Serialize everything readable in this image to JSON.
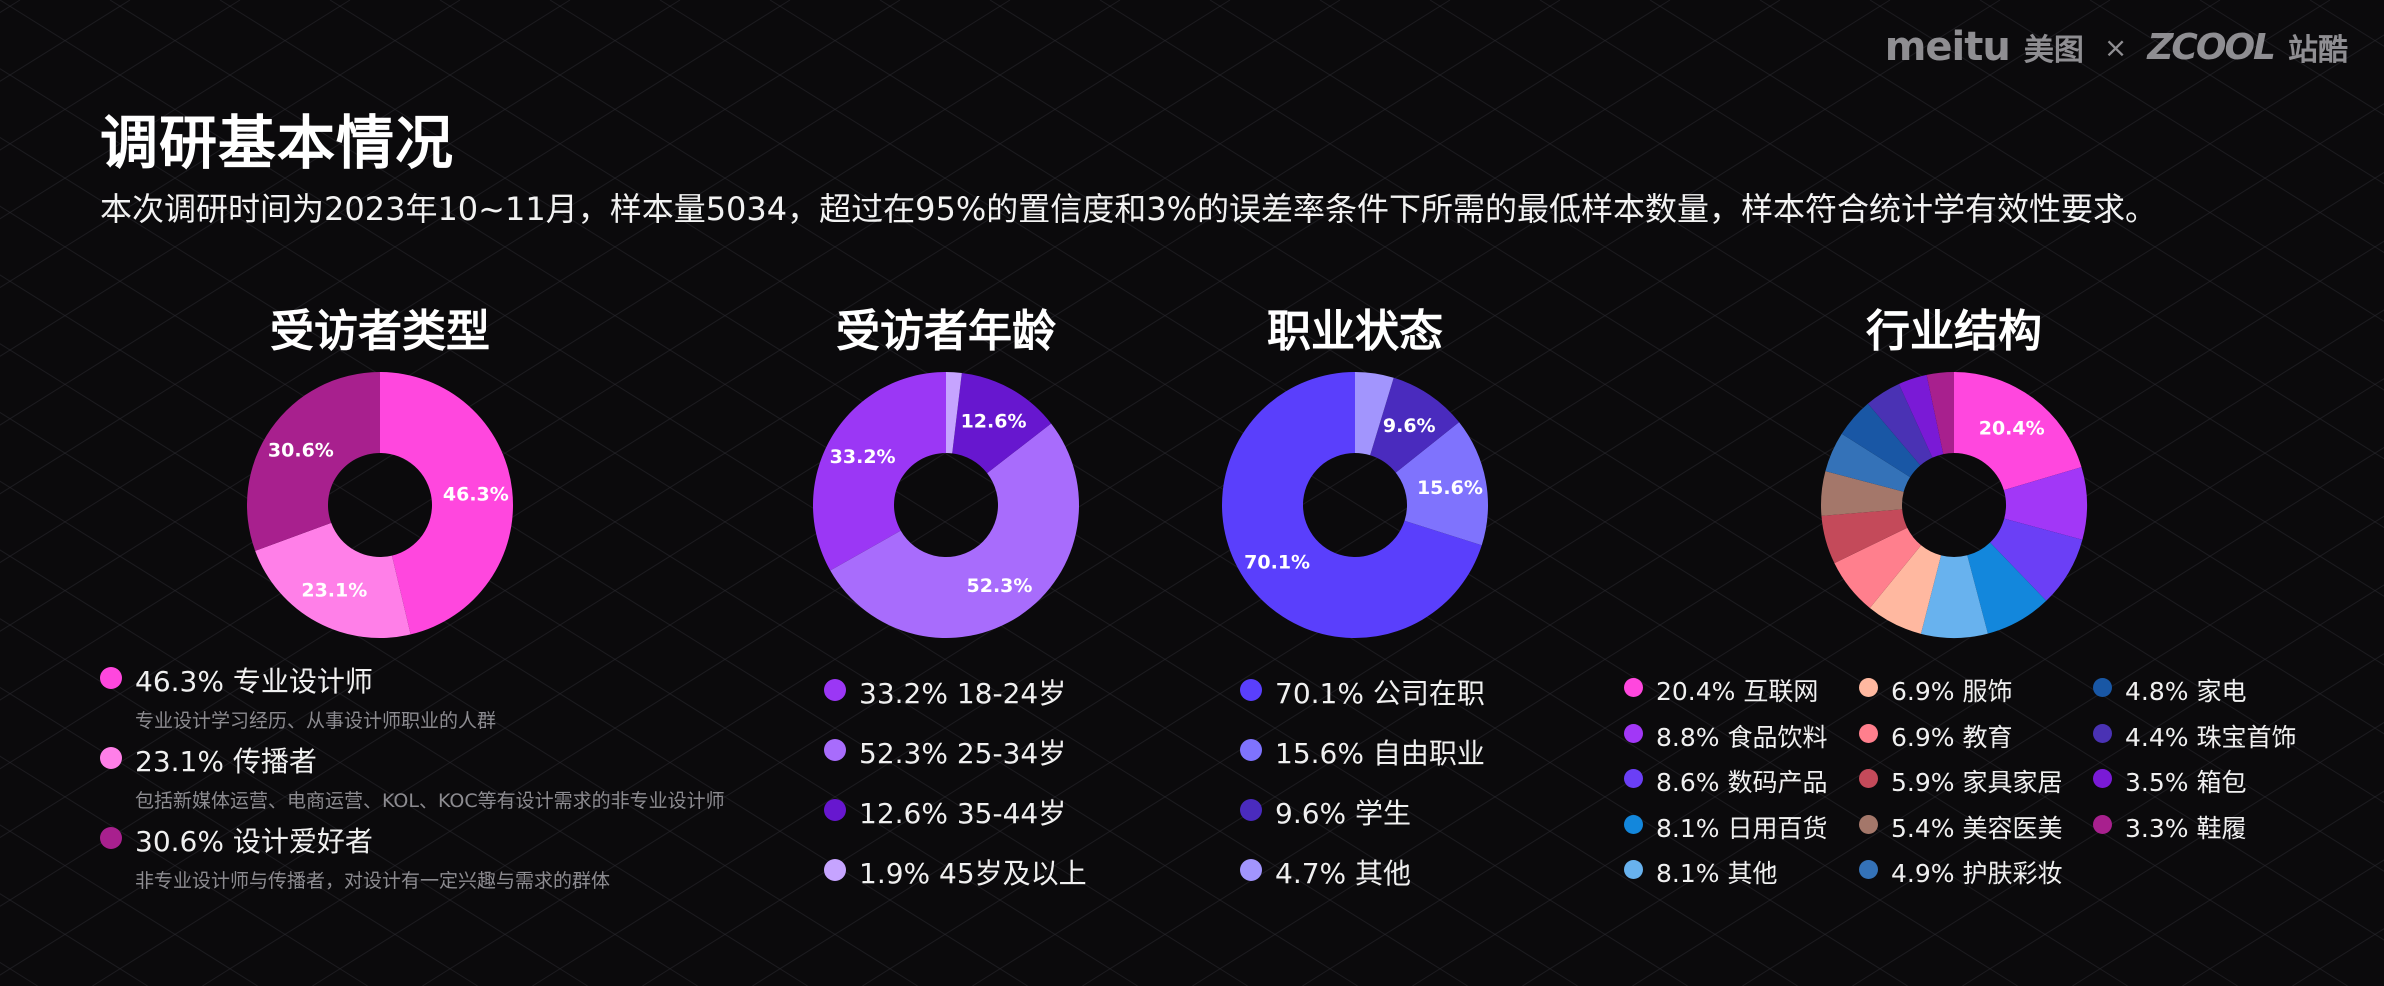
{
  "brand": {
    "meitu": "meitu",
    "meitu_cn": "美图",
    "times": "×",
    "zcool": "ZCOOL",
    "zcool_cn": "站酷"
  },
  "title": "调研基本情况",
  "subtitle": "本次调研时间为2023年10~11月，样本量5034，超过在95%的置信度和3%的误差率条件下所需的最低样本数量，样本符合统计学有效性要求。",
  "colors": {
    "background": "#0b0a0c",
    "grid": "#2b2a30"
  },
  "chart_data": [
    {
      "type": "pie",
      "donut": true,
      "title": "受访者类型",
      "slices": [
        {
          "label": "专业设计师",
          "value": 46.3,
          "display": "46.3%",
          "color": "#ff47de",
          "desc": "专业设计学习经历、从事设计师职业的人群"
        },
        {
          "label": "传播者",
          "value": 23.1,
          "display": "23.1%",
          "color": "#ff7fe8",
          "desc": "包括新媒体运营、电商运营、KOL、KOC等有设计需求的非专业设计师"
        },
        {
          "label": "设计爱好者",
          "value": 30.6,
          "display": "30.6%",
          "color": "#a8208e",
          "desc": "非专业设计师与传播者，对设计有一定兴趣与需求的群体"
        }
      ]
    },
    {
      "type": "pie",
      "donut": true,
      "title": "受访者年龄",
      "slices": [
        {
          "label": "18-24岁",
          "value": 33.2,
          "display": "33.2%",
          "color": "#9b37f5"
        },
        {
          "label": "25-34岁",
          "value": 52.3,
          "display": "52.3%",
          "color": "#a86cfc"
        },
        {
          "label": "35-44岁",
          "value": 12.6,
          "display": "12.6%",
          "color": "#6717cf"
        },
        {
          "label": "45岁及以上",
          "value": 1.9,
          "display": "1.9%",
          "color": "#c6a4ff"
        }
      ]
    },
    {
      "type": "pie",
      "donut": true,
      "title": "职业状态",
      "slices": [
        {
          "label": "公司在职",
          "value": 70.1,
          "display": "70.1%",
          "color": "#5a3ffc"
        },
        {
          "label": "自由职业",
          "value": 15.6,
          "display": "15.6%",
          "color": "#7f73fd"
        },
        {
          "label": "学生",
          "value": 9.6,
          "display": "9.6%",
          "color": "#4a2bbe"
        },
        {
          "label": "其他",
          "value": 4.7,
          "display": "4.7%",
          "color": "#a295fd"
        }
      ]
    },
    {
      "type": "pie",
      "donut": true,
      "title": "行业结构",
      "slices": [
        {
          "label": "互联网",
          "value": 20.4,
          "display": "20.4%",
          "color": "#ff47de"
        },
        {
          "label": "食品饮料",
          "value": 8.8,
          "display": "8.8%",
          "color": "#a237f7"
        },
        {
          "label": "数码产品",
          "value": 8.6,
          "display": "8.6%",
          "color": "#6b3ff6"
        },
        {
          "label": "日用百货",
          "value": 8.1,
          "display": "8.1%",
          "color": "#1387dc"
        },
        {
          "label": "其他",
          "value": 8.1,
          "display": "8.1%",
          "color": "#68b2ee"
        },
        {
          "label": "服饰",
          "value": 6.9,
          "display": "6.9%",
          "color": "#ffb8a0"
        },
        {
          "label": "教育",
          "value": 6.9,
          "display": "6.9%",
          "color": "#ff7f8d"
        },
        {
          "label": "家具家居",
          "value": 5.9,
          "display": "5.9%",
          "color": "#c44a5a"
        },
        {
          "label": "美容医美",
          "value": 5.4,
          "display": "5.4%",
          "color": "#a4776a"
        },
        {
          "label": "护肤彩妆",
          "value": 4.9,
          "display": "4.9%",
          "color": "#3472b8"
        },
        {
          "label": "家电",
          "value": 4.8,
          "display": "4.8%",
          "color": "#1957a5"
        },
        {
          "label": "珠宝首饰",
          "value": 4.4,
          "display": "4.4%",
          "color": "#4a32b4"
        },
        {
          "label": "箱包",
          "value": 3.5,
          "display": "3.5%",
          "color": "#7a1ad6"
        },
        {
          "label": "鞋履",
          "value": 3.3,
          "display": "3.3%",
          "color": "#a8208e"
        }
      ]
    }
  ]
}
